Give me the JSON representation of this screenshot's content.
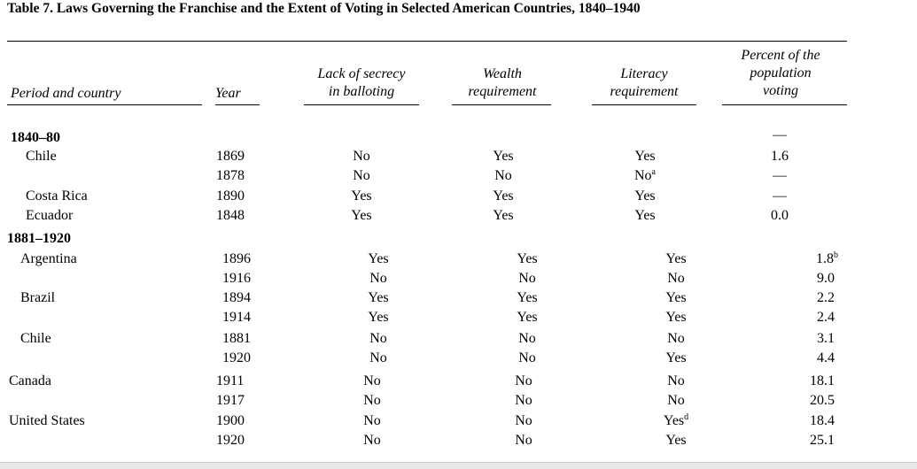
{
  "title": "Table 7. Laws Governing the Franchise and the Extent of Voting in Selected American Countries, 1840–1940",
  "headers": {
    "period_country": "Period and country",
    "year": "Year",
    "secrecy_1": "Lack of secrecy",
    "secrecy_2": "in balloting",
    "wealth_1": "Wealth",
    "wealth_2": "requirement",
    "literacy_1": "Literacy",
    "literacy_2": "requirement",
    "percent_1": "Percent of the",
    "percent_2": "population",
    "percent_3": "voting"
  },
  "period1": {
    "label": "1840–80",
    "header_percent": "—",
    "rows": [
      {
        "country": "Chile",
        "year": "1869",
        "secrecy": "No",
        "wealth": "Yes",
        "literacy": "Yes",
        "literacy_note": "",
        "percent": "1.6",
        "percent_note": ""
      },
      {
        "country": "",
        "year": "1878",
        "secrecy": "No",
        "wealth": "No",
        "literacy": "No",
        "literacy_note": "a",
        "percent": "—",
        "percent_note": ""
      },
      {
        "country": "Costa Rica",
        "year": "1890",
        "secrecy": "Yes",
        "wealth": "Yes",
        "literacy": "Yes",
        "literacy_note": "",
        "percent": "—",
        "percent_note": ""
      },
      {
        "country": "Ecuador",
        "year": "1848",
        "secrecy": "Yes",
        "wealth": "Yes",
        "literacy": "Yes",
        "literacy_note": "",
        "percent": "0.0",
        "percent_note": ""
      }
    ]
  },
  "period2": {
    "label": "1881–1920",
    "rows": [
      {
        "country": "Argentina",
        "year": "1896",
        "secrecy": "Yes",
        "wealth": "Yes",
        "literacy": "Yes",
        "literacy_note": "",
        "percent": "1.8",
        "percent_note": "b"
      },
      {
        "country": "",
        "year": "1916",
        "secrecy": "No",
        "wealth": "No",
        "literacy": "No",
        "literacy_note": "",
        "percent": "9.0",
        "percent_note": ""
      },
      {
        "country": "Brazil",
        "year": "1894",
        "secrecy": "Yes",
        "wealth": "Yes",
        "literacy": "Yes",
        "literacy_note": "",
        "percent": "2.2",
        "percent_note": ""
      },
      {
        "country": "",
        "year": "1914",
        "secrecy": "Yes",
        "wealth": "Yes",
        "literacy": "Yes",
        "literacy_note": "",
        "percent": "2.4",
        "percent_note": ""
      },
      {
        "country": "Chile",
        "year": "1881",
        "secrecy": "No",
        "wealth": "No",
        "literacy": "No",
        "literacy_note": "",
        "percent": "3.1",
        "percent_note": ""
      },
      {
        "country": "",
        "year": "1920",
        "secrecy": "No",
        "wealth": "No",
        "literacy": "Yes",
        "literacy_note": "",
        "percent": "4.4",
        "percent_note": ""
      }
    ]
  },
  "period3": {
    "rows": [
      {
        "country": "Canada",
        "year": "1911",
        "secrecy": "No",
        "wealth": "No",
        "literacy": "No",
        "literacy_note": "",
        "percent": "18.1",
        "percent_note": ""
      },
      {
        "country": "",
        "year": "1917",
        "secrecy": "No",
        "wealth": "No",
        "literacy": "No",
        "literacy_note": "",
        "percent": "20.5",
        "percent_note": ""
      },
      {
        "country": "United States",
        "year": "1900",
        "secrecy": "No",
        "wealth": "No",
        "literacy": "Yes",
        "literacy_note": "d",
        "percent": "18.4",
        "percent_note": ""
      },
      {
        "country": "",
        "year": "1920",
        "secrecy": "No",
        "wealth": "No",
        "literacy": "Yes",
        "literacy_note": "",
        "percent": "25.1",
        "percent_note": ""
      }
    ]
  }
}
